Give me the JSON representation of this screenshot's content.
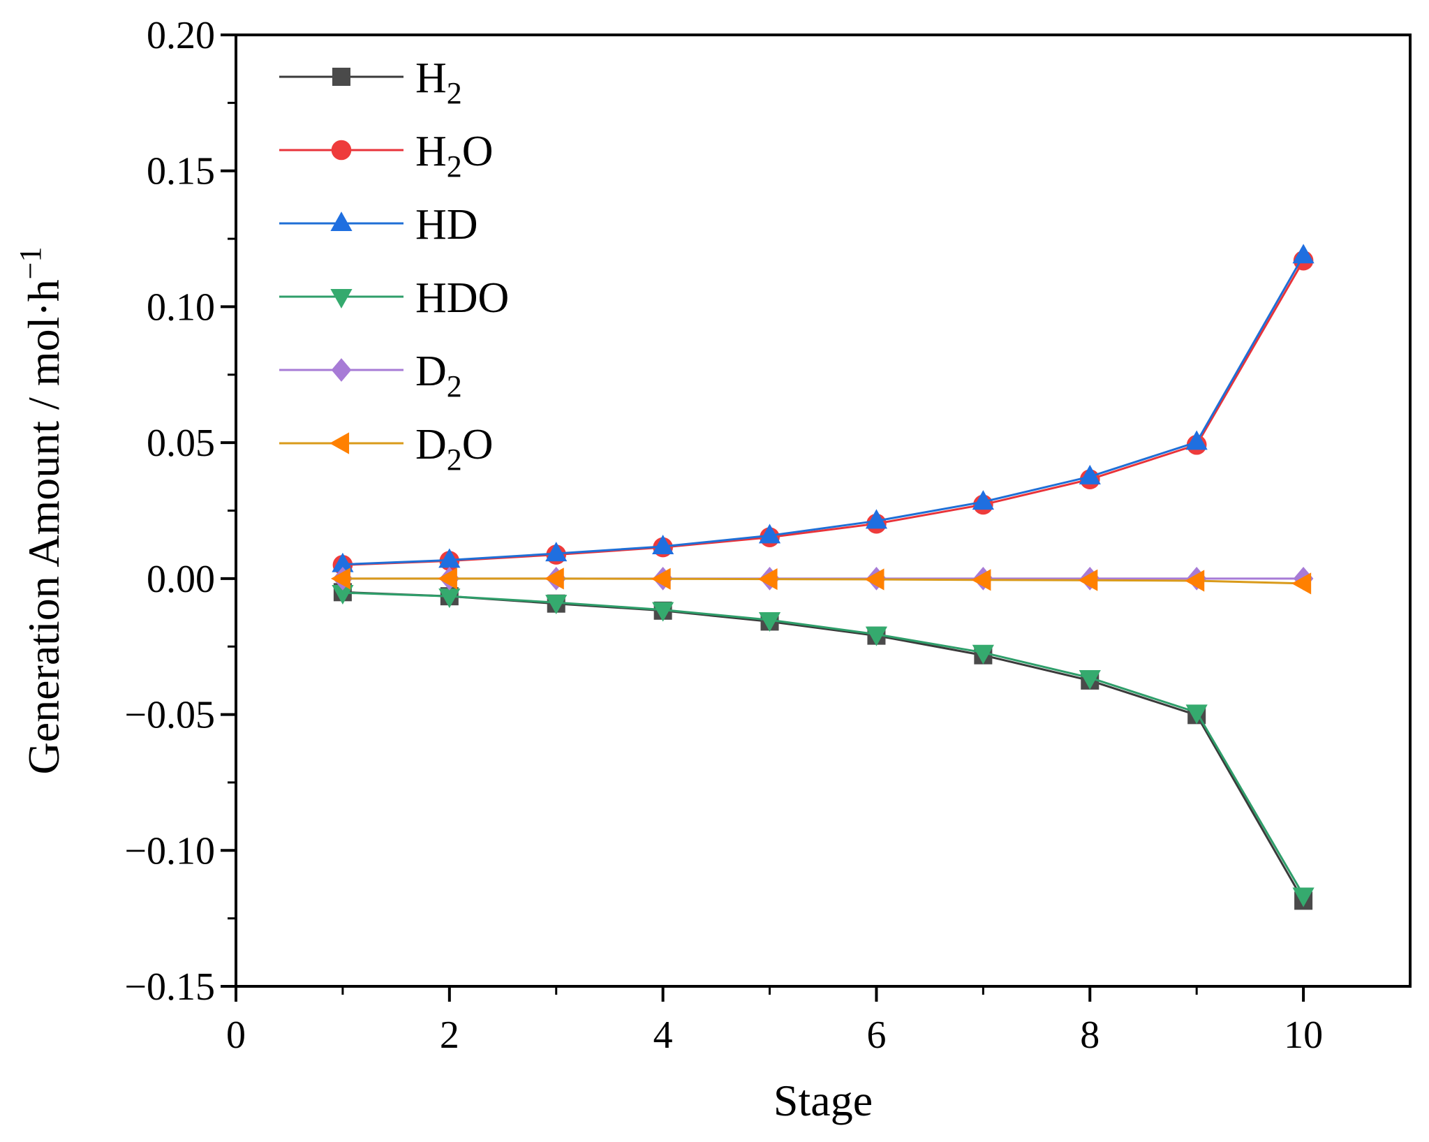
{
  "chart_data": {
    "type": "line",
    "title": "",
    "xlabel": "Stage",
    "ylabel": "Generation Amount / mol·h",
    "ylabel_superscript": "−1",
    "xlim": [
      0,
      11
    ],
    "ylim": [
      -0.15,
      0.2
    ],
    "xticks": [
      0,
      2,
      4,
      6,
      8,
      10
    ],
    "xtick_labels": [
      "0",
      "2",
      "4",
      "6",
      "8",
      "10"
    ],
    "yticks": [
      -0.15,
      -0.1,
      -0.05,
      0.0,
      0.05,
      0.1,
      0.15,
      0.2
    ],
    "ytick_labels": [
      "−0.15",
      "−0.10",
      "−0.05",
      "0.00",
      "0.05",
      "0.10",
      "0.15",
      "0.20"
    ],
    "grid": false,
    "legend_position": "top-left",
    "x": [
      1,
      2,
      3,
      4,
      5,
      6,
      7,
      8,
      9,
      10
    ],
    "series": [
      {
        "name": "H2",
        "label_main": "H",
        "label_sub": "2",
        "label_tail": "",
        "marker": "square",
        "line_color": "#3a3a3a",
        "marker_color": "#4a4a4a",
        "values": [
          -0.005,
          -0.0065,
          -0.0092,
          -0.0118,
          -0.0158,
          -0.021,
          -0.0282,
          -0.0375,
          -0.0502,
          -0.1185
        ]
      },
      {
        "name": "H2O",
        "label_main": "H",
        "label_sub": "2",
        "label_tail": "O",
        "marker": "circle",
        "line_color": "#e8333a",
        "marker_color": "#ee3b3b",
        "values": [
          0.005,
          0.0065,
          0.0088,
          0.0115,
          0.0152,
          0.0202,
          0.0272,
          0.0365,
          0.0492,
          0.117
        ]
      },
      {
        "name": "HD",
        "label_main": "HD",
        "label_sub": "",
        "label_tail": "",
        "marker": "triangle-up",
        "line_color": "#1f6fd6",
        "marker_color": "#1f6fe0",
        "values": [
          0.0052,
          0.0068,
          0.0092,
          0.0118,
          0.0158,
          0.0212,
          0.0282,
          0.0375,
          0.0502,
          0.1188
        ]
      },
      {
        "name": "HDO",
        "label_main": "HDO",
        "label_sub": "",
        "label_tail": "",
        "marker": "triangle-down",
        "line_color": "#2e9e6a",
        "marker_color": "#35aa6e",
        "values": [
          -0.0052,
          -0.0065,
          -0.0088,
          -0.0115,
          -0.0152,
          -0.0205,
          -0.0272,
          -0.0365,
          -0.0492,
          -0.1165
        ]
      },
      {
        "name": "D2",
        "label_main": "D",
        "label_sub": "2",
        "label_tail": "",
        "marker": "diamond",
        "line_color": "#a77bd6",
        "marker_color": "#a77bd6",
        "values": [
          0.0,
          0.0,
          0.0,
          0.0,
          0.0,
          0.0,
          0.0,
          0.0,
          0.0,
          0.0
        ]
      },
      {
        "name": "D2O",
        "label_main": "D",
        "label_sub": "2",
        "label_tail": "O",
        "marker": "triangle-left",
        "line_color": "#d99a1a",
        "marker_color": "#ff8000",
        "values": [
          0.0,
          0.0,
          0.0,
          -0.0001,
          -0.0002,
          -0.0003,
          -0.0005,
          -0.0006,
          -0.0008,
          -0.0018
        ]
      }
    ]
  }
}
